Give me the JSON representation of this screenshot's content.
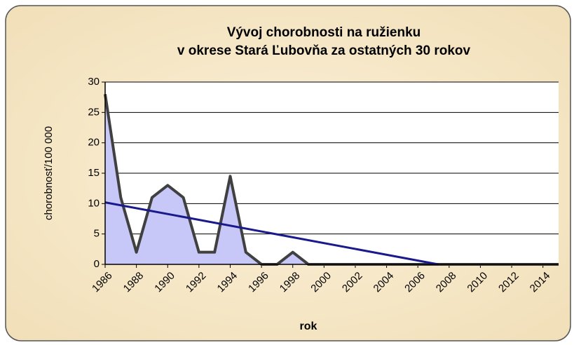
{
  "chart_data": {
    "type": "line",
    "title": [
      "Vývoj chorobnosti na ružienku",
      "v okrese Stará Ľubovňa za ostatných 30 rokov"
    ],
    "x_label": "rok",
    "y_label": "chorobnosť/100 000",
    "x": [
      1986,
      1987,
      1988,
      1989,
      1990,
      1991,
      1992,
      1993,
      1994,
      1995,
      1996,
      1997,
      1998,
      1999,
      2000,
      2001,
      2002,
      2003,
      2004,
      2005,
      2006,
      2007,
      2008,
      2009,
      2010,
      2011,
      2012,
      2013,
      2014,
      2015
    ],
    "series": [
      {
        "color": "#404040",
        "fill": "#c8c8f8",
        "values": [
          28,
          11,
          2,
          11,
          13,
          11,
          2,
          2,
          14.5,
          2,
          0,
          0,
          2,
          0,
          0,
          0,
          0,
          0,
          0,
          0,
          0,
          0,
          0,
          0,
          0,
          0,
          0,
          0,
          0,
          0
        ]
      }
    ],
    "trend": {
      "color": "#1a1a8c",
      "x": [
        1986,
        2007.3
      ],
      "values": [
        10.2,
        0
      ]
    },
    "xlim": [
      1986,
      2015
    ],
    "xticks": [
      1986,
      1988,
      1990,
      1992,
      1994,
      1996,
      1998,
      2000,
      2002,
      2004,
      2006,
      2008,
      2010,
      2012,
      2014
    ],
    "ylim": [
      0,
      30
    ],
    "yticks": [
      0,
      5,
      10,
      15,
      20,
      25,
      30
    ],
    "grid": true
  }
}
